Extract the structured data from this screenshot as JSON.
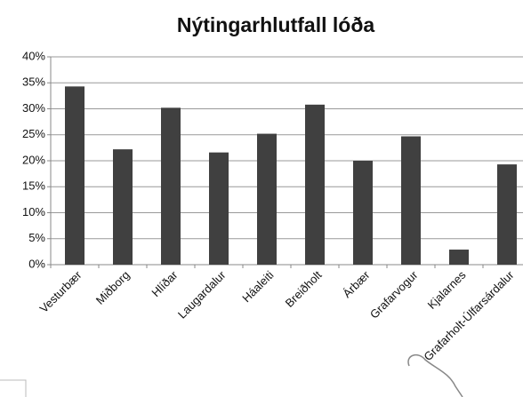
{
  "chart_data": {
    "type": "bar",
    "title": "Nýtingarhlutfall lóða",
    "categories": [
      "Vesturbær",
      "Miðborg",
      "Hlíðar",
      "Laugardalur",
      "Háaleiti",
      "Breiðholt",
      "Árbær",
      "Grafarvogur",
      "Kjalarnes",
      "Grafarholt-Úlfarsárdalur"
    ],
    "values": [
      34.3,
      22.2,
      30.2,
      21.6,
      25.2,
      30.8,
      20.0,
      24.7,
      2.9,
      19.3
    ],
    "color": "#404040",
    "ylim": [
      0,
      40
    ],
    "yticks": [
      {
        "value": 0,
        "label": "0%"
      },
      {
        "value": 5,
        "label": "5%"
      },
      {
        "value": 10,
        "label": "10%"
      },
      {
        "value": 15,
        "label": "15%"
      },
      {
        "value": 20,
        "label": "20%"
      },
      {
        "value": 25,
        "label": "25%"
      },
      {
        "value": 30,
        "label": "30%"
      },
      {
        "value": 35,
        "label": "35%"
      },
      {
        "value": 40,
        "label": "40%"
      }
    ],
    "grid": true
  }
}
